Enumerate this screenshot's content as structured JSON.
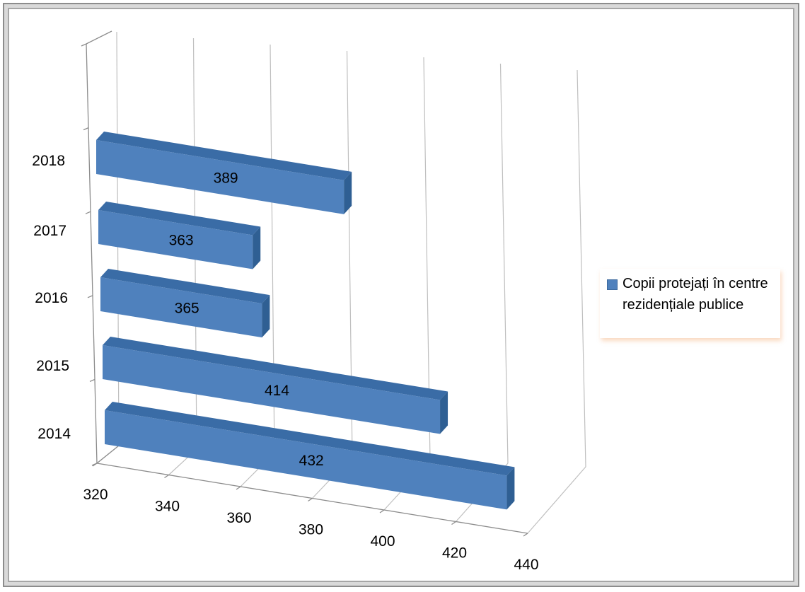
{
  "chart_data": {
    "type": "bar",
    "orientation": "horizontal",
    "style": "3d",
    "categories": [
      "2014",
      "2015",
      "2016",
      "2017",
      "2018"
    ],
    "series": [
      {
        "name": "Copii protejați în centre rezidențiale publice",
        "values": [
          432,
          414,
          365,
          363,
          389
        ]
      }
    ],
    "xlim": [
      320,
      440
    ],
    "xticks": [
      "320",
      "340",
      "360",
      "380",
      "400",
      "420",
      "440"
    ],
    "data_labels": [
      "432",
      "414",
      "365",
      "363",
      "389"
    ],
    "grid": true,
    "legend_position": "right",
    "colors": {
      "bar": "#4f81bd",
      "bar_side": "#2f5f93",
      "bar_top": "#3a6ca6",
      "grid": "#bfbfbf"
    }
  },
  "legend": {
    "label": "Copii protejați în centre rezidențiale publice"
  }
}
